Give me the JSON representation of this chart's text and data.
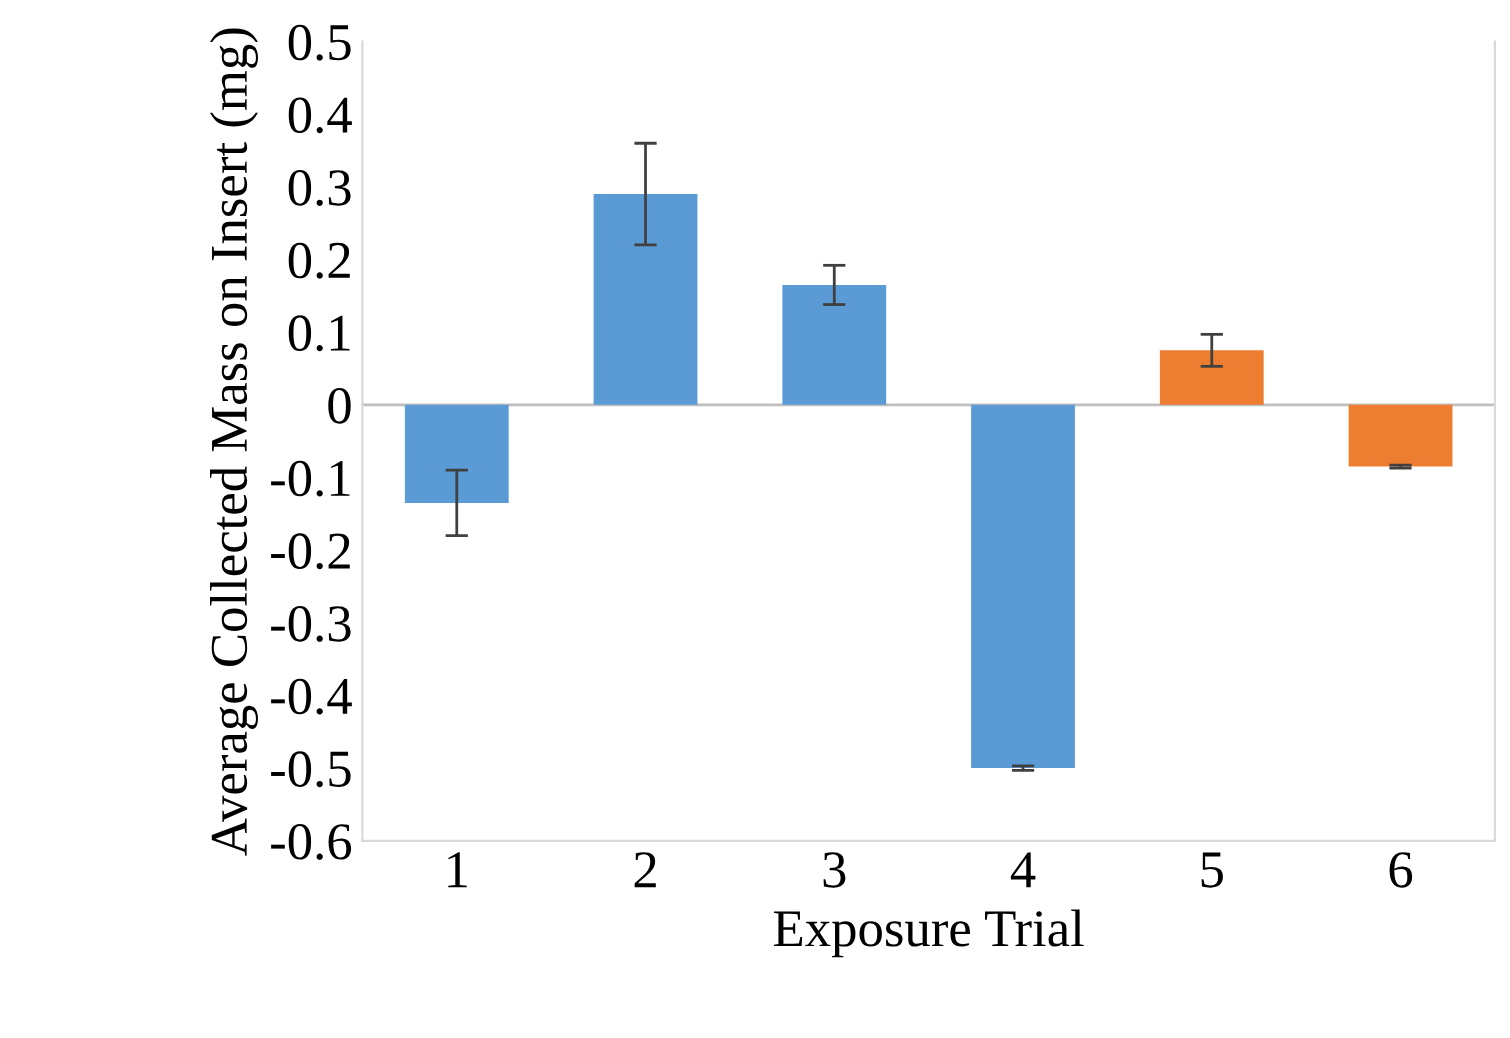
{
  "chart_data": {
    "type": "bar",
    "xlabel": "Exposure Trial",
    "ylabel": "Average Collected Mass on Insert (mg)",
    "categories": [
      "1",
      "2",
      "3",
      "4",
      "5",
      "6"
    ],
    "values": [
      -0.135,
      0.29,
      0.165,
      -0.5,
      0.075,
      -0.085
    ],
    "errors": [
      0.045,
      0.07,
      0.027,
      0.003,
      0.022,
      0.002
    ],
    "colors": [
      "#5b9bd5",
      "#5b9bd5",
      "#5b9bd5",
      "#5b9bd5",
      "#ed7d31",
      "#ed7d31"
    ],
    "ylim": [
      -0.6,
      0.5
    ],
    "yticks": [
      -0.6,
      -0.5,
      -0.4,
      -0.3,
      -0.2,
      -0.1,
      {
        "value": 0,
        "label": "0"
      },
      0.1,
      0.2,
      0.3,
      0.4,
      0.5
    ],
    "ref_lines": [
      {
        "axis": "y",
        "value": 0,
        "color": "#bfbfbf"
      }
    ],
    "grid": false,
    "legend": false
  }
}
